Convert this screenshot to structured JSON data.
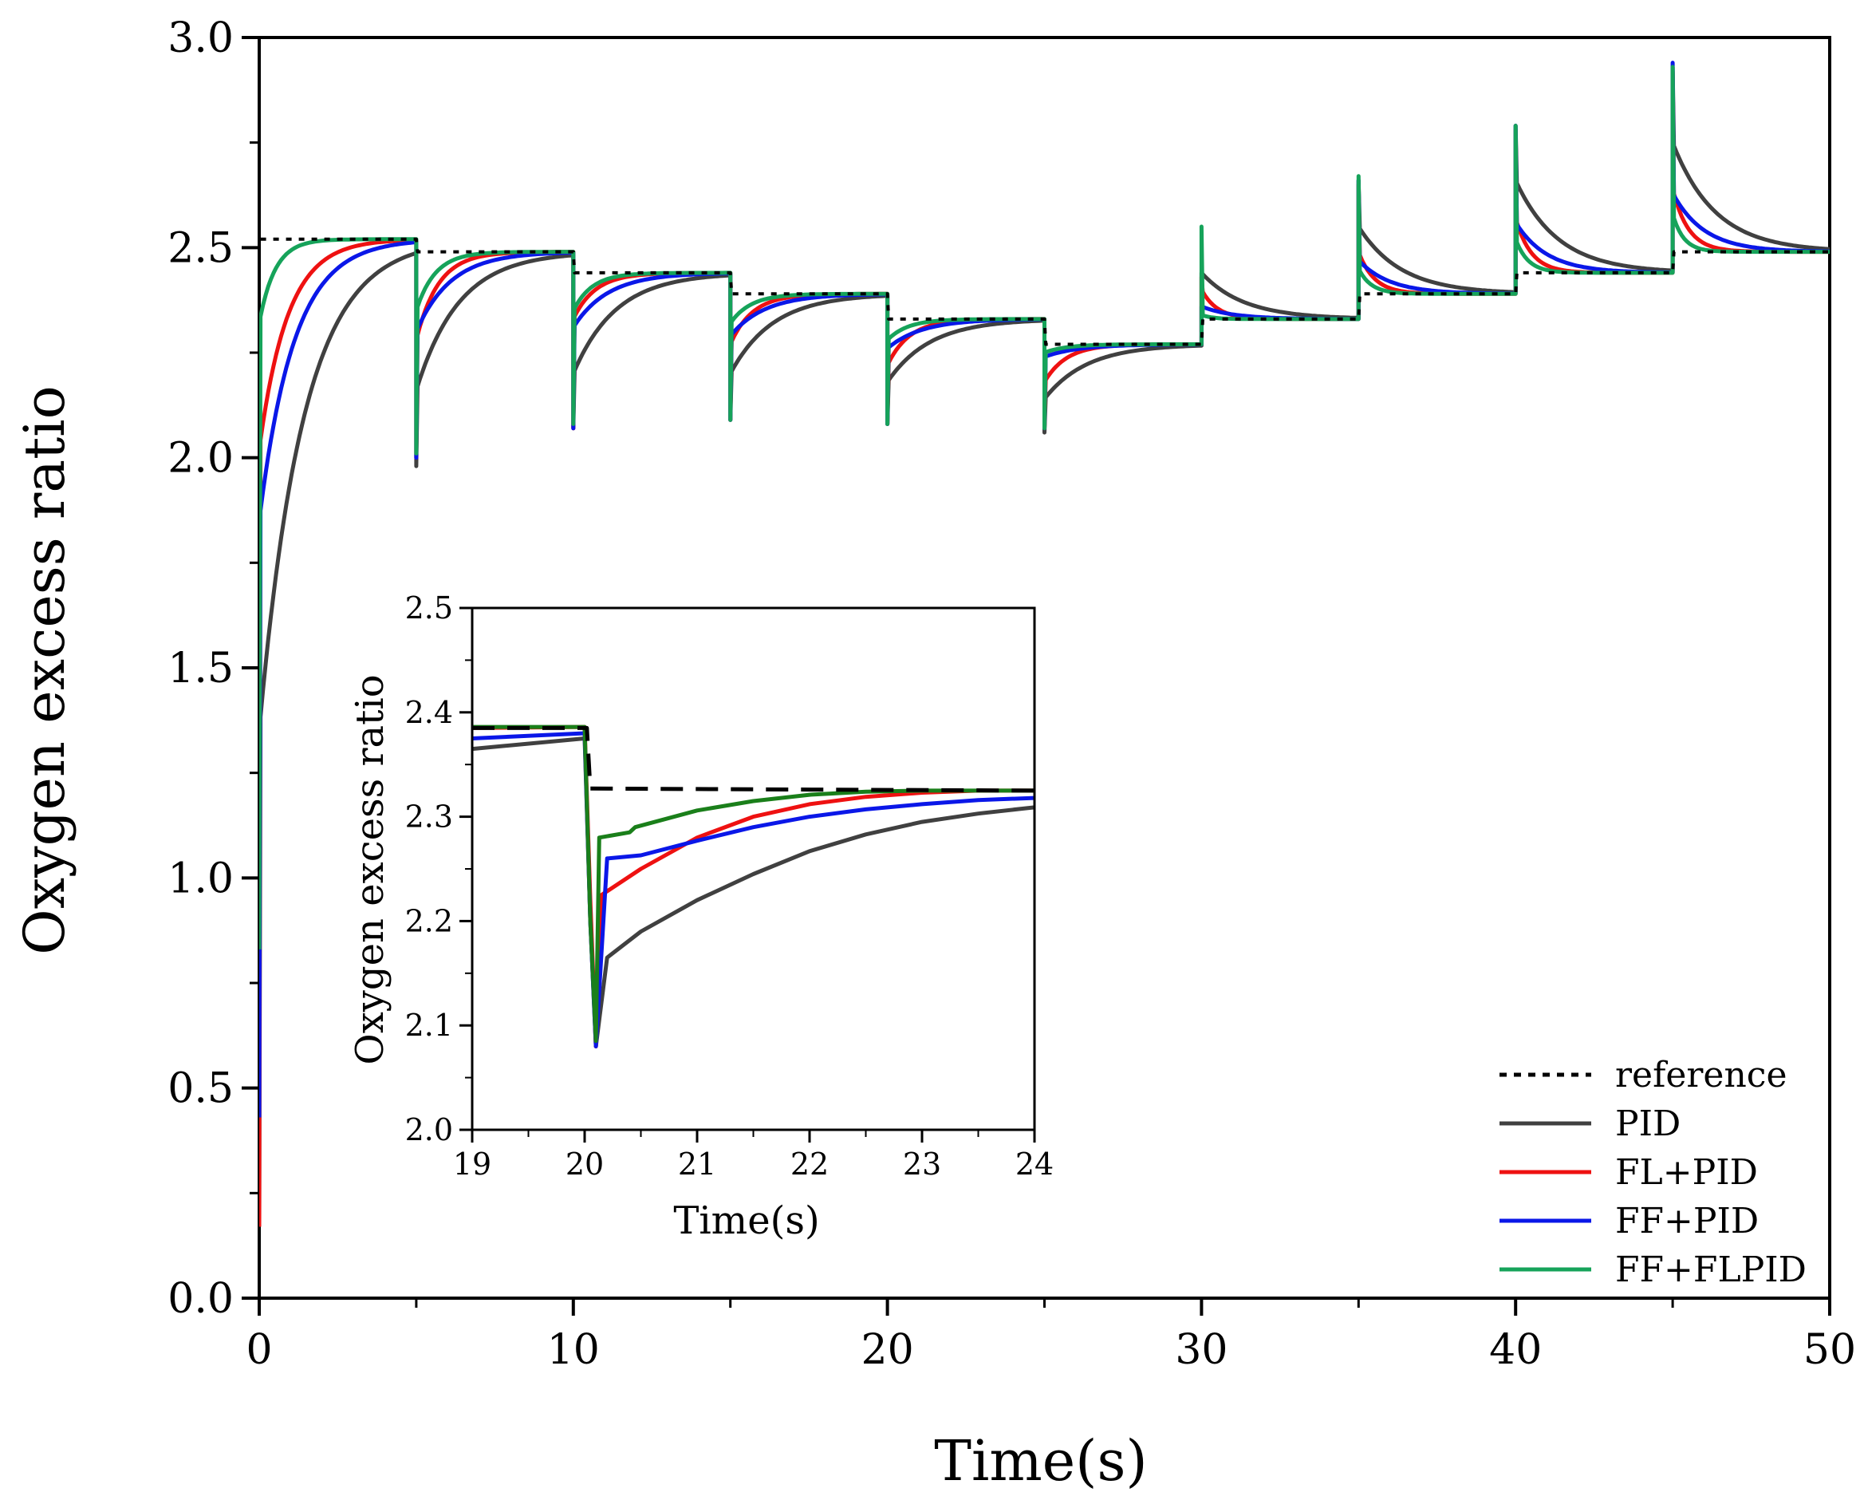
{
  "chart_data": [
    {
      "type": "line",
      "role": "main",
      "xlabel": "Time(s)",
      "ylabel": "Oxygen excess ratio",
      "xlim": [
        0,
        50
      ],
      "ylim": [
        0,
        3.0
      ],
      "xticks": [
        0,
        10,
        20,
        30,
        40,
        50
      ],
      "xtick_labels": [
        "0",
        "10",
        "20",
        "30",
        "40",
        "50"
      ],
      "yticks": [
        0.0,
        0.5,
        1.0,
        1.5,
        2.0,
        2.5,
        3.0
      ],
      "ytick_labels": [
        "0.0",
        "0.5",
        "1.0",
        "1.5",
        "2.0",
        "2.5",
        "3.0"
      ],
      "legend_position": "bottom-right",
      "reference_levels": [
        2.52,
        2.49,
        2.44,
        2.39,
        2.33,
        2.27,
        2.33,
        2.39,
        2.44,
        2.49
      ],
      "segment_times": [
        0,
        5,
        10,
        15,
        20,
        25,
        30,
        35,
        40,
        45
      ],
      "series": [
        {
          "name": "reference",
          "color": "#000000",
          "style": "dotted",
          "segment_start": [
            2.52,
            2.49,
            2.44,
            2.39,
            2.33,
            2.27,
            2.33,
            2.39,
            2.44,
            2.49
          ],
          "tau": [
            0.01,
            0.01,
            0.01,
            0.01,
            0.01,
            0.01,
            0.01,
            0.01,
            0.01,
            0.01
          ]
        },
        {
          "name": "PID",
          "color": "#404040",
          "style": "solid",
          "segment_start": [
            1.35,
            2.16,
            2.2,
            2.2,
            2.18,
            2.14,
            2.44,
            2.55,
            2.66,
            2.75
          ],
          "tau": [
            1.4,
            1.35,
            1.35,
            1.35,
            1.35,
            1.35,
            1.35,
            1.35,
            1.35,
            1.35
          ],
          "spike": [
            0.17,
            1.98,
            2.07,
            2.09,
            2.08,
            2.06,
            2.44,
            2.66,
            2.79,
            2.93
          ]
        },
        {
          "name": "FL+PID",
          "color": "#ee1111",
          "style": "solid",
          "segment_start": [
            2.02,
            2.28,
            2.33,
            2.27,
            2.22,
            2.18,
            2.4,
            2.49,
            2.57,
            2.64
          ],
          "tau": [
            0.9,
            0.7,
            0.7,
            0.7,
            0.7,
            0.7,
            0.5,
            0.5,
            0.5,
            0.5
          ],
          "spike": [
            0.17,
            2.0,
            2.07,
            2.09,
            2.08,
            2.07,
            2.43,
            2.65,
            2.78,
            2.92
          ]
        },
        {
          "name": "FF+PID",
          "color": "#0a17e8",
          "style": "solid",
          "segment_start": [
            1.85,
            2.3,
            2.31,
            2.29,
            2.26,
            2.24,
            2.36,
            2.47,
            2.56,
            2.63
          ],
          "tau": [
            1.1,
            1.1,
            1.1,
            1.1,
            1.1,
            1.1,
            1.0,
            1.0,
            1.0,
            1.0
          ],
          "spike": [
            0.43,
            2.0,
            2.07,
            2.09,
            2.08,
            2.07,
            2.36,
            2.66,
            2.79,
            2.94
          ]
        },
        {
          "name": "FF+FLPID",
          "color": "#16a35a",
          "style": "solid",
          "segment_start": [
            2.32,
            2.35,
            2.35,
            2.32,
            2.28,
            2.25,
            2.34,
            2.45,
            2.52,
            2.58
          ],
          "tau": [
            0.5,
            0.6,
            0.6,
            0.65,
            0.65,
            0.7,
            0.35,
            0.4,
            0.4,
            0.35
          ],
          "spike": [
            0.83,
            2.01,
            2.08,
            2.09,
            2.08,
            2.07,
            2.55,
            2.67,
            2.79,
            2.93
          ]
        }
      ]
    },
    {
      "type": "line",
      "role": "inset",
      "xlabel": "Time(s)",
      "ylabel": "Oxygen excess ratio",
      "xlim": [
        19,
        24
      ],
      "ylim": [
        2.0,
        2.5
      ],
      "xticks": [
        19,
        20,
        21,
        22,
        23,
        24
      ],
      "xtick_labels": [
        "19",
        "20",
        "21",
        "22",
        "23",
        "24"
      ],
      "yticks": [
        2.0,
        2.1,
        2.2,
        2.3,
        2.4,
        2.5
      ],
      "ytick_labels": [
        "2.0",
        "2.1",
        "2.2",
        "2.3",
        "2.4",
        "2.5"
      ],
      "series": [
        {
          "name": "reference",
          "color": "#000000",
          "style": "dashed",
          "points": [
            [
              19,
              2.385
            ],
            [
              20.02,
              2.385
            ],
            [
              20.05,
              2.327
            ],
            [
              24,
              2.325
            ]
          ]
        },
        {
          "name": "PID",
          "color": "#404040",
          "style": "solid",
          "points": [
            [
              19,
              2.365
            ],
            [
              20,
              2.375
            ],
            [
              20.05,
              2.2
            ],
            [
              20.1,
              2.08
            ],
            [
              20.2,
              2.165
            ],
            [
              20.5,
              2.19
            ],
            [
              21,
              2.22
            ],
            [
              21.5,
              2.245
            ],
            [
              22,
              2.267
            ],
            [
              22.5,
              2.283
            ],
            [
              23,
              2.295
            ],
            [
              23.5,
              2.303
            ],
            [
              24,
              2.309
            ]
          ]
        },
        {
          "name": "FL+PID",
          "color": "#ee1111",
          "style": "solid",
          "points": [
            [
              19,
              2.385
            ],
            [
              20,
              2.386
            ],
            [
              20.05,
              2.22
            ],
            [
              20.1,
              2.08
            ],
            [
              20.15,
              2.225
            ],
            [
              20.5,
              2.25
            ],
            [
              21,
              2.28
            ],
            [
              21.5,
              2.3
            ],
            [
              22,
              2.312
            ],
            [
              22.5,
              2.319
            ],
            [
              23,
              2.323
            ],
            [
              23.5,
              2.325
            ],
            [
              24,
              2.325
            ]
          ]
        },
        {
          "name": "FF+PID",
          "color": "#0a17e8",
          "style": "solid",
          "points": [
            [
              19,
              2.375
            ],
            [
              20,
              2.38
            ],
            [
              20.05,
              2.2
            ],
            [
              20.1,
              2.08
            ],
            [
              20.2,
              2.26
            ],
            [
              20.5,
              2.263
            ],
            [
              21,
              2.277
            ],
            [
              21.5,
              2.29
            ],
            [
              22,
              2.3
            ],
            [
              22.5,
              2.307
            ],
            [
              23,
              2.312
            ],
            [
              23.5,
              2.316
            ],
            [
              24,
              2.318
            ]
          ]
        },
        {
          "name": "FF+FLPID",
          "color": "#1a7f1a",
          "style": "solid",
          "points": [
            [
              19,
              2.386
            ],
            [
              20,
              2.386
            ],
            [
              20.05,
              2.2
            ],
            [
              20.1,
              2.085
            ],
            [
              20.13,
              2.28
            ],
            [
              20.4,
              2.285
            ],
            [
              20.45,
              2.29
            ],
            [
              21,
              2.306
            ],
            [
              21.5,
              2.315
            ],
            [
              22,
              2.321
            ],
            [
              22.5,
              2.324
            ],
            [
              23,
              2.325
            ],
            [
              24,
              2.325
            ]
          ]
        }
      ]
    }
  ]
}
